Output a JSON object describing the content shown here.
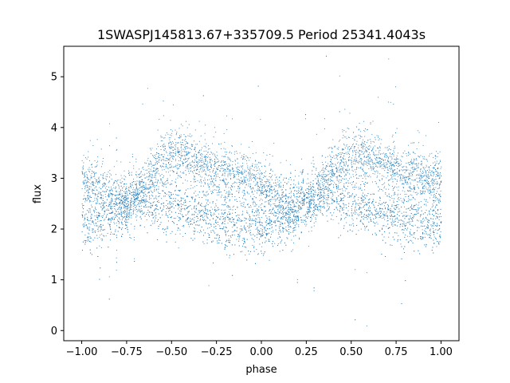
{
  "chart_data": {
    "type": "scatter",
    "title": "1SWASPJ145813.67+335709.5 Period 25341.4043s",
    "xlabel": "phase",
    "ylabel": "flux",
    "xlim": [
      -1.1,
      1.1
    ],
    "ylim": [
      -0.2,
      5.6
    ],
    "grid": false,
    "legend": "none",
    "x_ticks": [
      -1.0,
      -0.75,
      -0.5,
      -0.25,
      0.0,
      0.25,
      0.5,
      0.75,
      1.0
    ],
    "x_tick_labels": [
      "−1.00",
      "−0.75",
      "−0.50",
      "−0.25",
      "0.00",
      "0.25",
      "0.50",
      "0.75",
      "1.00"
    ],
    "y_ticks": [
      0,
      1,
      2,
      3,
      4,
      5
    ],
    "y_tick_labels": [
      "0",
      "1",
      "2",
      "3",
      "4",
      "5"
    ],
    "point_color": "#1f77b4",
    "series": [
      {
        "x": [
          -1.0,
          -0.95,
          -0.9,
          -0.85,
          -0.8,
          -0.75,
          -0.7,
          -0.65,
          -0.6,
          -0.55,
          -0.5,
          -0.45,
          -0.4,
          -0.35,
          -0.3,
          -0.25,
          -0.2,
          -0.15,
          -0.1,
          -0.05,
          0.0,
          0.05,
          0.1,
          0.15,
          0.2,
          0.25,
          0.3,
          0.35,
          0.4,
          0.45,
          0.5,
          0.55,
          0.6,
          0.65,
          0.7,
          0.75,
          0.8,
          0.85,
          0.9,
          0.95,
          1.0
        ],
        "y": [
          2.95,
          2.9,
          2.8,
          2.65,
          2.55,
          2.55,
          2.65,
          2.9,
          3.2,
          3.4,
          3.45,
          3.45,
          3.4,
          3.3,
          3.2,
          3.15,
          3.1,
          3.05,
          3.0,
          2.95,
          2.9,
          2.75,
          2.6,
          2.5,
          2.45,
          2.5,
          2.65,
          2.9,
          3.15,
          3.35,
          3.45,
          3.5,
          3.45,
          3.35,
          3.25,
          3.15,
          3.1,
          3.05,
          3.0,
          2.95,
          2.9
        ]
      },
      {
        "x": [
          -1.0,
          -0.95,
          -0.9,
          -0.85,
          -0.8,
          -0.75,
          -0.7,
          -0.65,
          -0.6,
          -0.55,
          -0.5,
          -0.45,
          -0.4,
          -0.35,
          -0.3,
          -0.25,
          -0.2,
          -0.15,
          -0.1,
          -0.05,
          0.0,
          0.05,
          0.1,
          0.15,
          0.2,
          0.25,
          0.3,
          0.35,
          0.4,
          0.45,
          0.5,
          0.55,
          0.6,
          0.65,
          0.7,
          0.75,
          0.8,
          0.85,
          0.9,
          0.95,
          1.0
        ],
        "y": [
          2.1,
          2.1,
          2.15,
          2.2,
          2.35,
          2.5,
          2.6,
          2.6,
          2.55,
          2.5,
          2.45,
          2.4,
          2.35,
          2.3,
          2.25,
          2.2,
          2.15,
          2.1,
          2.05,
          2.05,
          2.05,
          2.05,
          2.1,
          2.2,
          2.4,
          2.6,
          2.7,
          2.7,
          2.65,
          2.55,
          2.5,
          2.45,
          2.4,
          2.35,
          2.3,
          2.25,
          2.2,
          2.15,
          2.1,
          2.1,
          2.1
        ]
      }
    ]
  }
}
